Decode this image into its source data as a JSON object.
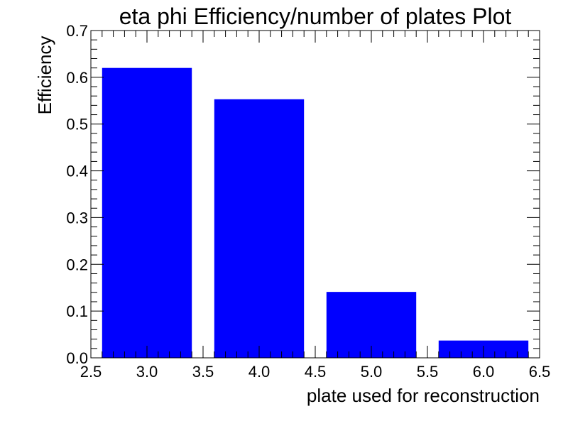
{
  "chart_data": {
    "type": "bar",
    "title": "eta phi Efficiency/number of plates Plot",
    "xlabel": "plate used for reconstruction",
    "ylabel": "Efficiency",
    "x": [
      3.0,
      4.0,
      5.0,
      6.0
    ],
    "bar_width": 0.8,
    "values": [
      0.62,
      0.553,
      0.141,
      0.037
    ],
    "xlim": [
      2.5,
      6.5
    ],
    "ylim": [
      0.0,
      0.7
    ],
    "x_major_ticks": [
      2.5,
      3.0,
      3.5,
      4.0,
      4.5,
      5.0,
      5.5,
      6.0,
      6.5
    ],
    "x_tick_labels": [
      "2.5",
      "3.0",
      "3.5",
      "4.0",
      "4.5",
      "5.0",
      "5.5",
      "6.0",
      "6.5"
    ],
    "x_minor_step": 0.1,
    "y_major_ticks": [
      0.0,
      0.1,
      0.2,
      0.3,
      0.4,
      0.5,
      0.6,
      0.7
    ],
    "y_tick_labels": [
      "0.0",
      "0.1",
      "0.2",
      "0.3",
      "0.4",
      "0.5",
      "0.6",
      "0.7"
    ],
    "y_minor_step": 0.02,
    "bar_color": "#0000ff",
    "grid": false,
    "legend": "none"
  }
}
